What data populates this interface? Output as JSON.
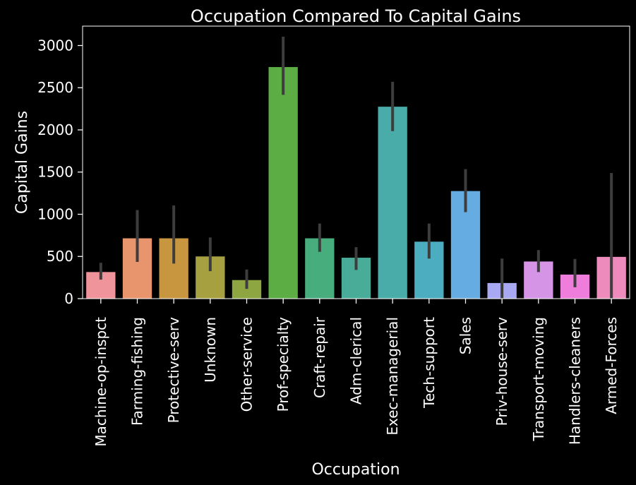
{
  "chart_data": {
    "type": "bar",
    "title": "Occupation Compared To Capital Gains",
    "xlabel": "Occupation",
    "ylabel": "Capital Gains",
    "ylim": [
      0,
      3230
    ],
    "yticks": [
      0,
      500,
      1000,
      1500,
      2000,
      2500,
      3000
    ],
    "grid": false,
    "legend": "none",
    "categories": [
      "Machine-op-inspct",
      "Farming-fishing",
      "Protective-serv",
      "Unknown",
      "Other-service",
      "Prof-specialty",
      "Craft-repair",
      "Adm-clerical",
      "Exec-managerial",
      "Tech-support",
      "Sales",
      "Priv-house-serv",
      "Transport-moving",
      "Handlers-cleaners",
      "Armed-Forces"
    ],
    "values": [
      315,
      715,
      715,
      500,
      220,
      2745,
      715,
      485,
      2275,
      675,
      1275,
      185,
      440,
      285,
      495
    ],
    "error_low": [
      225,
      435,
      415,
      325,
      115,
      2415,
      555,
      340,
      1985,
      475,
      1025,
      0,
      315,
      135,
      0
    ],
    "error_high": [
      425,
      1050,
      1105,
      725,
      345,
      3105,
      890,
      610,
      2570,
      890,
      1535,
      475,
      575,
      470,
      1490
    ],
    "colors": [
      "#f0949b",
      "#e8946c",
      "#c99640",
      "#a7a041",
      "#8ea642",
      "#5cae44",
      "#47ad7c",
      "#49ac98",
      "#4aaca9",
      "#4cadc0",
      "#64ace2",
      "#a9a8f2",
      "#d694e7",
      "#ee7ddc",
      "#ee8bbd"
    ],
    "error_bar_color": "#3d3d3d"
  }
}
